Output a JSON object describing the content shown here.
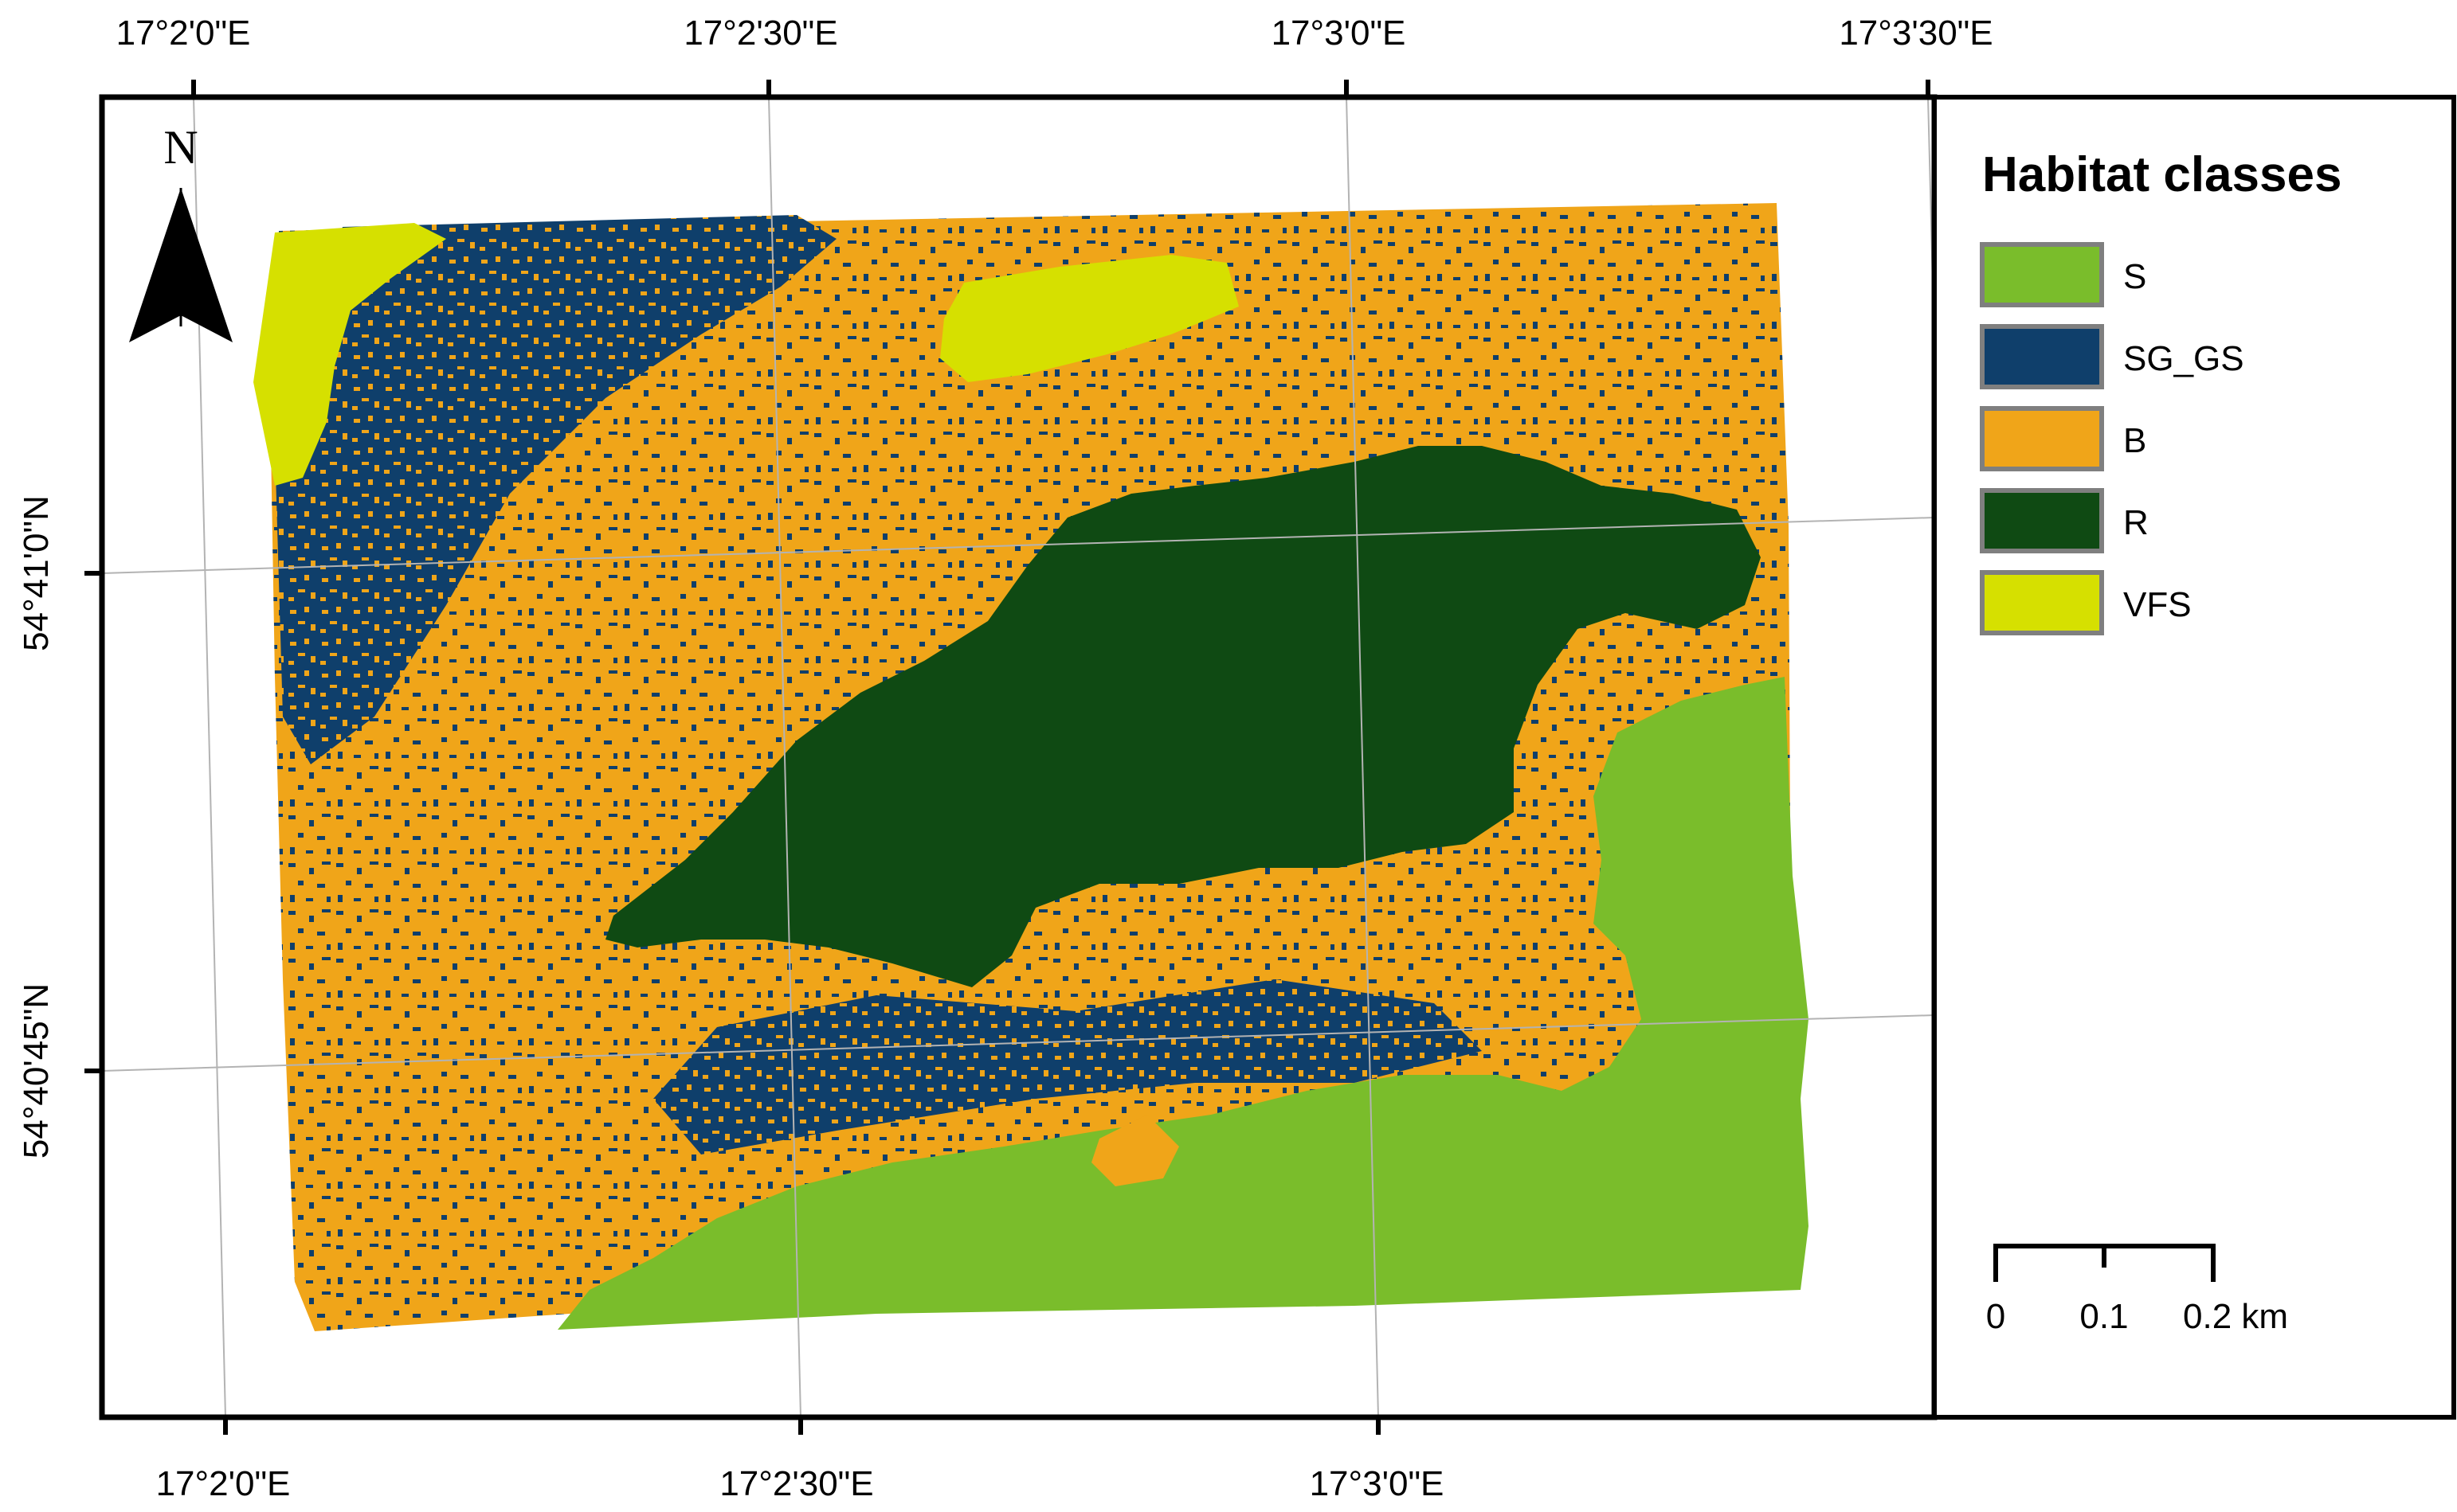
{
  "map": {
    "top_ticks": [
      "17°2'0\"E",
      "17°2'30\"E",
      "17°3'0\"E",
      "17°3'30\"E"
    ],
    "bottom_ticks": [
      "17°2'0\"E",
      "17°2'30\"E",
      "17°3'0\"E"
    ],
    "left_ticks": [
      "54°41'0\"N",
      "54°40'45\"N"
    ],
    "north_label": "N"
  },
  "legend": {
    "title": "Habitat classes",
    "items": [
      {
        "label": "S",
        "color": "#7abd2b"
      },
      {
        "label": "SG_GS",
        "color": "#0f3f6b"
      },
      {
        "label": "B",
        "color": "#f0a519"
      },
      {
        "label": "R",
        "color": "#0f4a13"
      },
      {
        "label": "VFS",
        "color": "#d6e000"
      }
    ]
  },
  "scale_bar": {
    "labels": [
      "0",
      "0.1",
      "0.2 km"
    ]
  }
}
